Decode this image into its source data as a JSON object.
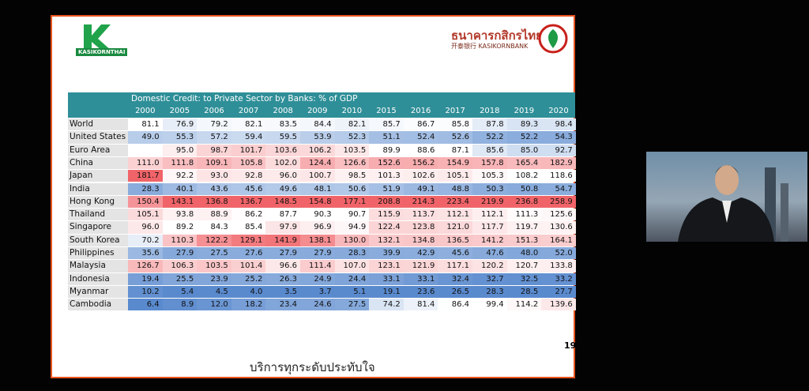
{
  "header": {
    "left_logo": "KASIKORNTHAI",
    "bank_thai": "ธนาคารกสิกรไทย",
    "bank_en": "开泰银行 KASIKORNBANK"
  },
  "table": {
    "title": "Domestic Credit: to Private Sector by Banks: % of GDP",
    "columns": [
      "2000",
      "2005",
      "2006",
      "2007",
      "2008",
      "2009",
      "2010",
      "2015",
      "2016",
      "2017",
      "2018",
      "2019",
      "2020"
    ],
    "rows": [
      {
        "label": "World",
        "cells": [
          "81.1",
          "76.9",
          "79.2",
          "82.1",
          "83.5",
          "84.4",
          "82.1",
          "85.7",
          "86.7",
          "85.8",
          "87.8",
          "89.3",
          "98.4"
        ]
      },
      {
        "label": "United States",
        "cells": [
          "49.0",
          "55.3",
          "57.2",
          "59.4",
          "59.5",
          "53.9",
          "52.3",
          "51.1",
          "52.4",
          "52.6",
          "52.2",
          "52.2",
          "54.3"
        ]
      },
      {
        "label": "Euro Area",
        "cells": [
          null,
          "95.0",
          "98.7",
          "101.7",
          "103.6",
          "106.2",
          "103.5",
          "89.9",
          "88.6",
          "87.1",
          "85.6",
          "85.0",
          "92.7"
        ]
      },
      {
        "label": "China",
        "cells": [
          "111.0",
          "111.8",
          "109.1",
          "105.8",
          "102.0",
          "124.4",
          "126.6",
          "152.6",
          "156.2",
          "154.9",
          "157.8",
          "165.4",
          "182.9"
        ]
      },
      {
        "label": "Japan",
        "cells": [
          "181.7",
          "92.2",
          "93.0",
          "92.8",
          "96.0",
          "100.7",
          "98.5",
          "101.3",
          "102.6",
          "105.1",
          "105.3",
          "108.2",
          "118.6"
        ]
      },
      {
        "label": "India",
        "cells": [
          "28.3",
          "40.1",
          "43.6",
          "45.6",
          "49.6",
          "48.1",
          "50.6",
          "51.9",
          "49.1",
          "48.8",
          "50.3",
          "50.8",
          "54.7"
        ]
      },
      {
        "label": "Hong Kong",
        "cells": [
          "150.4",
          "143.1",
          "136.8",
          "136.7",
          "148.5",
          "154.8",
          "177.1",
          "208.8",
          "214.3",
          "223.4",
          "219.9",
          "236.8",
          "258.9"
        ]
      },
      {
        "label": "Thailand",
        "cells": [
          "105.1",
          "93.8",
          "88.9",
          "86.2",
          "87.7",
          "90.3",
          "90.7",
          "115.9",
          "113.7",
          "112.1",
          "112.1",
          "111.3",
          "125.6"
        ]
      },
      {
        "label": "Singapore",
        "cells": [
          "96.0",
          "89.2",
          "84.3",
          "85.4",
          "97.9",
          "96.9",
          "94.9",
          "122.4",
          "123.8",
          "121.0",
          "117.7",
          "119.7",
          "130.6"
        ]
      },
      {
        "label": "South Korea",
        "cells": [
          "70.2",
          "110.3",
          "122.2",
          "129.1",
          "141.9",
          "138.1",
          "130.0",
          "132.1",
          "134.8",
          "136.5",
          "141.2",
          "151.3",
          "164.1"
        ]
      },
      {
        "label": "Philippines",
        "cells": [
          "35.6",
          "27.9",
          "27.5",
          "27.6",
          "27.9",
          "27.9",
          "28.3",
          "39.9",
          "42.9",
          "45.6",
          "47.6",
          "48.0",
          "52.0"
        ]
      },
      {
        "label": "Malaysia",
        "cells": [
          "126.7",
          "106.3",
          "103.5",
          "101.4",
          "96.6",
          "111.4",
          "107.0",
          "123.1",
          "121.9",
          "117.1",
          "120.2",
          "120.7",
          "133.8"
        ]
      },
      {
        "label": "Indonesia",
        "cells": [
          "19.4",
          "25.5",
          "23.9",
          "25.2",
          "26.3",
          "24.9",
          "24.4",
          "33.1",
          "33.1",
          "32.4",
          "32.7",
          "32.5",
          "33.2"
        ]
      },
      {
        "label": "Myanmar",
        "cells": [
          "10.2",
          "5.4",
          "4.5",
          "4.0",
          "3.5",
          "3.7",
          "5.1",
          "19.1",
          "23.6",
          "26.5",
          "28.3",
          "28.5",
          "27.7"
        ]
      },
      {
        "label": "Cambodia",
        "cells": [
          "6.4",
          "8.9",
          "12.0",
          "18.2",
          "23.4",
          "24.6",
          "27.5",
          "74.2",
          "81.4",
          "86.4",
          "99.4",
          "114.2",
          "139.6"
        ]
      }
    ]
  },
  "footer": {
    "page": "19",
    "slogan": "บริการทุกระดับประทับใจ"
  }
}
